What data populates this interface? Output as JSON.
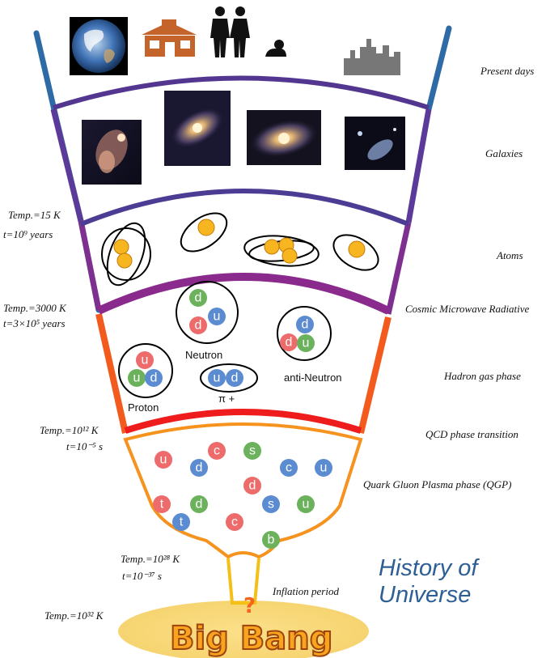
{
  "eras": {
    "present": "Present days",
    "galaxies": "Galaxies",
    "atoms": "Atoms",
    "cmb": "Cosmic Microwave Radiative",
    "hadron": "Hadron gas phase",
    "qcd": "QCD phase transition",
    "qgp": "Quark Gluon Plasma phase (QGP)",
    "inflation": "Inflation period"
  },
  "conditions": {
    "c1_temp": "Temp.=15 K",
    "c1_time": "t=10⁹ years",
    "c2_temp": "Temp.=3000 K",
    "c2_time": "t=3×10⁵ years",
    "c3_temp": "Temp.=10¹² K",
    "c3_time": "t=10⁻⁵ s",
    "c4_temp": "Temp.=10²⁸ K",
    "c4_time": "t=10⁻³⁷ s",
    "c5_temp": "Temp.=10³² K"
  },
  "particles": {
    "neutron": "Neutron",
    "proton": "Proton",
    "anti_neutron": "anti-Neutron",
    "pion": "π +"
  },
  "title_line1": "History of",
  "title_line2": "Universe",
  "big_bang": "Big Bang",
  "question_mark": "?",
  "quarks": {
    "neutron": [
      "d",
      "u",
      "d"
    ],
    "anti_neutron": [
      "d",
      "d",
      "u"
    ],
    "proton": [
      "u",
      "u",
      "d"
    ],
    "pion": [
      "u",
      "d"
    ],
    "qgp": [
      "u",
      "c",
      "s",
      "d",
      "c",
      "u",
      "d",
      "t",
      "d",
      "s",
      "u",
      "t",
      "c",
      "b"
    ]
  },
  "colors": {
    "red_quark": "#ee6b6b",
    "green_quark": "#6cb25c",
    "blue_quark": "#5b8bd0",
    "title": "#2d5f97"
  }
}
